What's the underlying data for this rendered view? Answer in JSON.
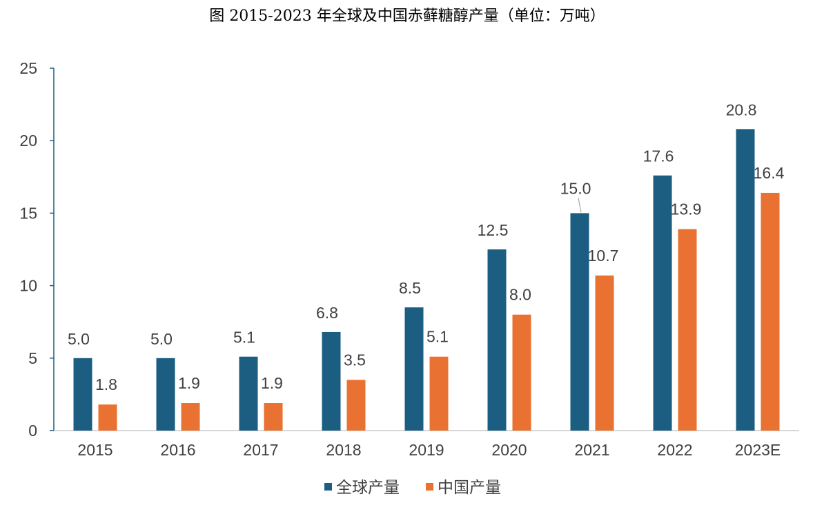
{
  "chart_data": {
    "type": "bar",
    "title": "图 2015-2023 年全球及中国赤藓糖醇产量（单位：万吨）",
    "xlabel": "",
    "ylabel": "",
    "categories": [
      "2015",
      "2016",
      "2017",
      "2018",
      "2019",
      "2020",
      "2021",
      "2022",
      "2023E"
    ],
    "series": [
      {
        "name": "全球产量",
        "color": "#1b5e82",
        "values": [
          5.0,
          5.0,
          5.1,
          6.8,
          8.5,
          12.5,
          15.0,
          17.6,
          20.8
        ],
        "labels": [
          "5.0",
          "5.0",
          "5.1",
          "6.8",
          "8.5",
          "12.5",
          "15.0",
          "17.6",
          "20.8"
        ]
      },
      {
        "name": "中国产量",
        "color": "#e97132",
        "values": [
          1.8,
          1.9,
          1.9,
          3.5,
          5.1,
          8.0,
          10.7,
          13.9,
          16.4
        ],
        "labels": [
          "1.8",
          "1.9",
          "1.9",
          "3.5",
          "5.1",
          "8.0",
          "10.7",
          "13.9",
          "16.4"
        ]
      }
    ],
    "ylim": [
      0,
      25
    ],
    "yticks": [
      "0",
      "5",
      "10",
      "15",
      "20",
      "25"
    ],
    "grid": false,
    "legend": "bottom-center"
  }
}
